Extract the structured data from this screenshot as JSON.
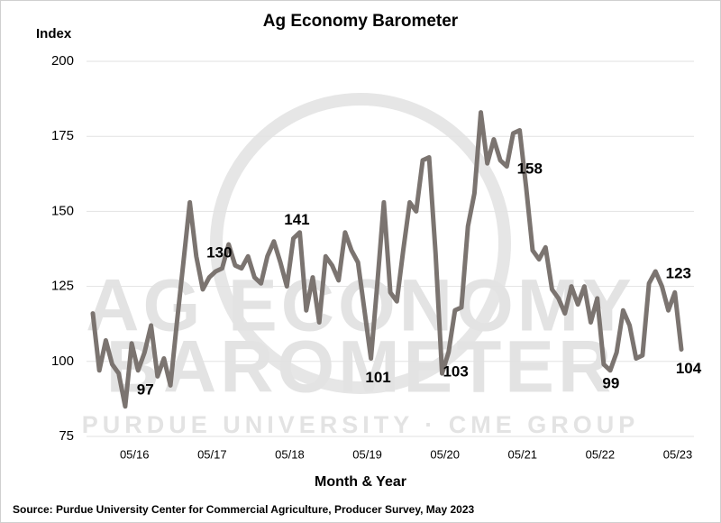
{
  "chart_data": {
    "type": "line",
    "title": "Ag Economy Barometer",
    "y_label": "Index",
    "x_label": "Month & Year",
    "source": "Source: Purdue University Center for Commercial Agriculture, Producer Survey, May 2023",
    "watermark": [
      "AG ECONOMY",
      "BAROMETER",
      "PURDUE UNIVERSITY · CME GROUP"
    ],
    "categories": [
      null,
      null,
      null,
      null,
      null,
      null,
      null,
      "05/16",
      null,
      null,
      null,
      null,
      null,
      null,
      null,
      null,
      null,
      null,
      null,
      "05/17",
      null,
      null,
      null,
      null,
      null,
      null,
      null,
      null,
      null,
      null,
      null,
      "05/18",
      null,
      null,
      null,
      null,
      null,
      null,
      null,
      null,
      null,
      null,
      null,
      "05/19",
      null,
      null,
      null,
      null,
      null,
      null,
      null,
      null,
      null,
      null,
      null,
      "05/20",
      null,
      null,
      null,
      null,
      null,
      null,
      null,
      null,
      null,
      null,
      null,
      "05/21",
      null,
      null,
      null,
      null,
      null,
      null,
      null,
      null,
      null,
      null,
      null,
      "05/22",
      null,
      null,
      null,
      null,
      null,
      null,
      null,
      null,
      null,
      null,
      null,
      "05/23"
    ],
    "series": [
      {
        "name": "Index",
        "color": "#7b7470",
        "values": [
          116,
          97,
          107,
          99,
          96,
          85,
          106,
          97,
          103,
          112,
          95,
          101,
          92,
          113,
          133,
          153,
          135,
          124,
          128,
          130,
          131,
          139,
          132,
          131,
          135,
          128,
          126,
          135,
          140,
          133,
          125,
          141,
          143,
          117,
          128,
          113,
          135,
          132,
          127,
          143,
          137,
          133,
          117,
          101,
          126,
          153,
          123,
          120,
          137,
          153,
          150,
          167,
          168,
          136,
          96,
          103,
          117,
          118,
          145,
          156,
          183,
          166,
          174,
          167,
          165,
          176,
          177,
          158,
          137,
          134,
          138,
          124,
          121,
          116,
          125,
          119,
          125,
          113,
          121,
          99,
          97,
          103,
          117,
          112,
          101,
          102,
          126,
          130,
          125,
          117,
          123,
          104
        ],
        "value_labels": [
          null,
          null,
          null,
          null,
          null,
          null,
          null,
          "97",
          null,
          null,
          null,
          null,
          null,
          null,
          null,
          null,
          null,
          null,
          null,
          "130",
          null,
          null,
          null,
          null,
          null,
          null,
          null,
          null,
          null,
          null,
          null,
          "141",
          null,
          null,
          null,
          null,
          null,
          null,
          null,
          null,
          null,
          null,
          null,
          "101",
          null,
          null,
          null,
          null,
          null,
          null,
          null,
          null,
          null,
          null,
          null,
          "103",
          null,
          null,
          null,
          null,
          null,
          null,
          null,
          null,
          null,
          null,
          null,
          "158",
          null,
          null,
          null,
          null,
          null,
          null,
          null,
          null,
          null,
          null,
          null,
          "99",
          null,
          null,
          null,
          null,
          null,
          null,
          null,
          null,
          null,
          null,
          "123",
          "104"
        ]
      }
    ],
    "ylim": [
      75,
      200
    ],
    "yticks": [
      75,
      100,
      125,
      150,
      175,
      200
    ],
    "grid": true
  }
}
